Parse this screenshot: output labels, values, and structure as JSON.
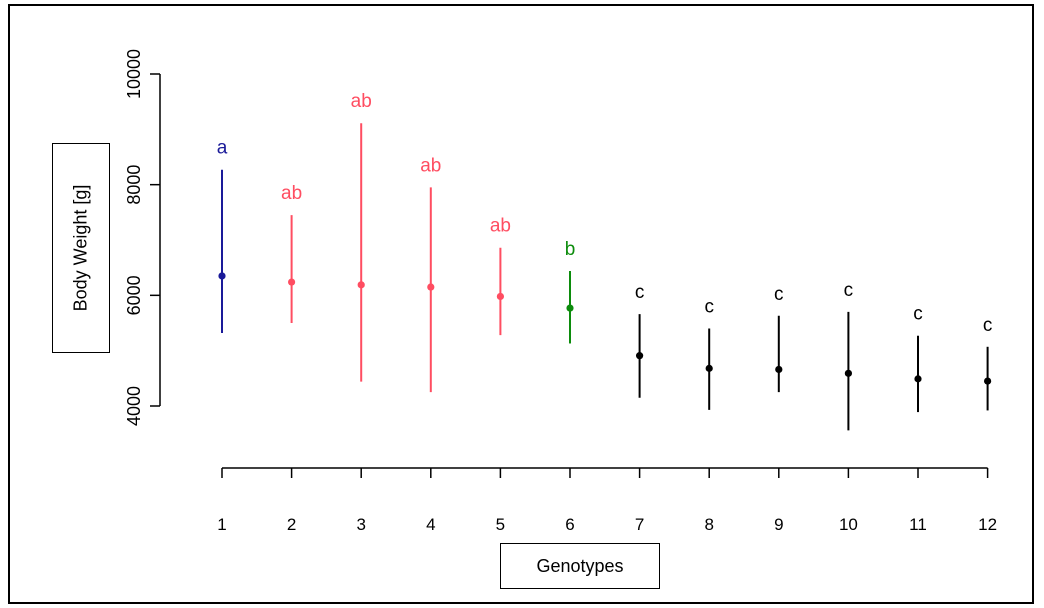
{
  "chart_data": {
    "type": "scatter",
    "xlabel": "Genotypes",
    "ylabel": "Body Weight [g]",
    "ylim": [
      3200,
      10400
    ],
    "y_ticks": [
      4000,
      6000,
      8000,
      10000
    ],
    "categories": [
      "1",
      "2",
      "3",
      "4",
      "5",
      "6",
      "7",
      "8",
      "9",
      "10",
      "11",
      "12"
    ],
    "points": [
      {
        "x": "1",
        "mean": 6350,
        "low": 5320,
        "high": 8270,
        "group": "a",
        "color": "#1a1a99"
      },
      {
        "x": "2",
        "mean": 6240,
        "low": 5500,
        "high": 7450,
        "group": "ab",
        "color": "#ff4d61"
      },
      {
        "x": "3",
        "mean": 6190,
        "low": 4440,
        "high": 9110,
        "group": "ab",
        "color": "#ff4d61"
      },
      {
        "x": "4",
        "mean": 6150,
        "low": 4250,
        "high": 7950,
        "group": "ab",
        "color": "#ff4d61"
      },
      {
        "x": "5",
        "mean": 5980,
        "low": 5280,
        "high": 6860,
        "group": "ab",
        "color": "#ff4d61"
      },
      {
        "x": "6",
        "mean": 5770,
        "low": 5130,
        "high": 6440,
        "group": "b",
        "color": "#0c8c0c"
      },
      {
        "x": "7",
        "mean": 4910,
        "low": 4150,
        "high": 5660,
        "group": "c",
        "color": "#000000"
      },
      {
        "x": "8",
        "mean": 4680,
        "low": 3930,
        "high": 5400,
        "group": "c",
        "color": "#000000"
      },
      {
        "x": "9",
        "mean": 4660,
        "low": 4250,
        "high": 5630,
        "group": "c",
        "color": "#000000"
      },
      {
        "x": "10",
        "mean": 4590,
        "low": 3560,
        "high": 5700,
        "group": "c",
        "color": "#000000"
      },
      {
        "x": "11",
        "mean": 4490,
        "low": 3890,
        "high": 5270,
        "group": "c",
        "color": "#000000"
      },
      {
        "x": "12",
        "mean": 4450,
        "low": 3920,
        "high": 5070,
        "group": "c",
        "color": "#000000"
      }
    ],
    "grid": false,
    "legend": "none"
  }
}
